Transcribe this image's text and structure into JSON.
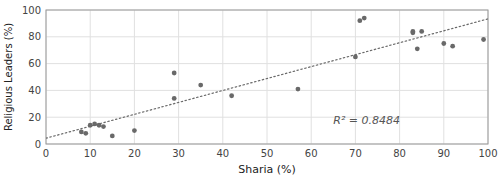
{
  "chart_data": {
    "type": "scatter",
    "x": [
      8,
      9,
      10,
      11,
      12,
      13,
      15,
      20,
      29,
      29,
      35,
      42,
      57,
      70,
      71,
      72,
      83,
      83,
      84,
      85,
      90,
      92,
      99
    ],
    "values": [
      9,
      8,
      14,
      15,
      14,
      13,
      6,
      10,
      34,
      53,
      44,
      36,
      41,
      65,
      92,
      94,
      83,
      84,
      71,
      84,
      75,
      73,
      78
    ],
    "color": "#696969",
    "xlabel": "Sharia (%)",
    "ylabel": "Religious Leaders (%)",
    "xlim": [
      0,
      100
    ],
    "ylim": [
      0,
      100
    ],
    "xticks": [
      0,
      10,
      20,
      30,
      40,
      50,
      60,
      70,
      80,
      90,
      100
    ],
    "yticks": [
      0,
      20,
      40,
      60,
      80,
      100
    ],
    "grid": true,
    "trend_line": {
      "x": [
        0,
        100
      ],
      "values": [
        4.3249,
        93.3801
      ],
      "color": "#696969",
      "line_style": "dotted"
    },
    "annotations": [
      {
        "text": "R² = 0.8484",
        "x": 65,
        "y": 18
      }
    ]
  }
}
